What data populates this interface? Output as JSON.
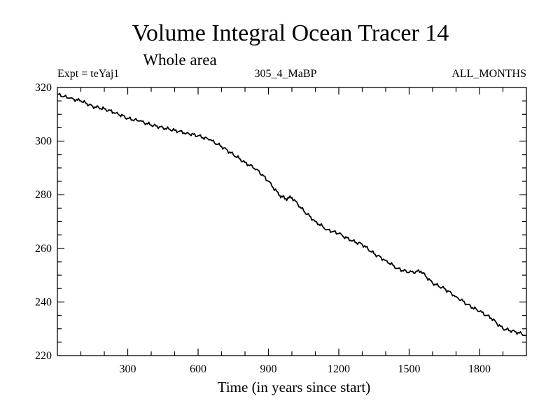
{
  "chart_data": {
    "type": "line",
    "title": "Volume Integral Ocean Tracer 14",
    "subtitle": "Whole area",
    "left_label": "Expt = teYaj1",
    "center_label": "305_4_MaBP",
    "right_label": "ALL_MONTHS",
    "xlabel": "Time (in years since start)",
    "ylabel": "",
    "xlim": [
      0,
      2000
    ],
    "ylim": [
      220,
      320
    ],
    "xticks": [
      300,
      600,
      900,
      1200,
      1500,
      1800
    ],
    "yticks": [
      220,
      240,
      260,
      280,
      300,
      320
    ],
    "grid": false,
    "series": [
      {
        "name": "Volume Integral Ocean Tracer 14",
        "color": "#000000",
        "x": [
          0,
          50,
          100,
          150,
          200,
          250,
          300,
          350,
          400,
          450,
          500,
          550,
          600,
          650,
          700,
          750,
          800,
          850,
          900,
          950,
          975,
          1000,
          1050,
          1100,
          1150,
          1200,
          1250,
          1300,
          1350,
          1400,
          1450,
          1500,
          1550,
          1600,
          1650,
          1700,
          1750,
          1800,
          1850,
          1900,
          1950,
          2000
        ],
        "y": [
          317.5,
          316.0,
          315.0,
          313.0,
          312.0,
          310.5,
          308.5,
          307.5,
          306.0,
          305.0,
          304.0,
          303.0,
          302.0,
          300.5,
          298.0,
          295.0,
          292.0,
          289.5,
          285.0,
          279.5,
          278.5,
          279.0,
          274.0,
          270.0,
          267.0,
          265.5,
          263.0,
          261.5,
          258.0,
          255.5,
          252.5,
          251.0,
          251.5,
          247.0,
          245.0,
          242.0,
          239.0,
          236.5,
          234.0,
          230.0,
          229.0,
          227.5
        ]
      }
    ]
  }
}
